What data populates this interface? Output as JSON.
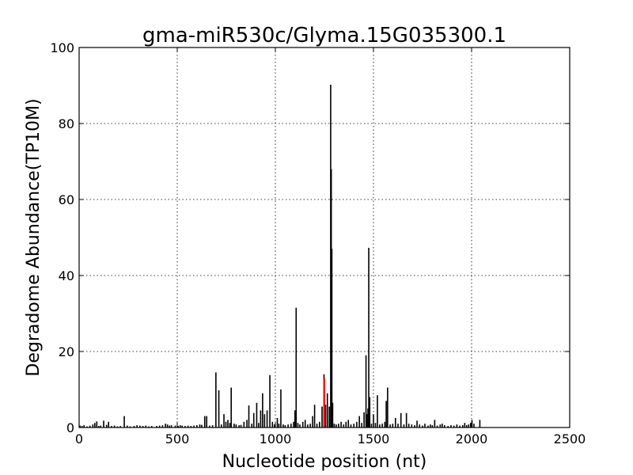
{
  "chart_data": {
    "type": "bar",
    "title": "gma-miR530c/Glyma.15G035300.1",
    "xlabel": "Nucleotide position (nt)",
    "ylabel": "Degradome Abundance(TP10M)",
    "xlim": [
      0,
      2500
    ],
    "ylim": [
      0,
      100
    ],
    "xticks": [
      "0",
      "500",
      "1000",
      "1500",
      "2000",
      "2500"
    ],
    "yticks": [
      "0",
      "20",
      "40",
      "60",
      "80",
      "100"
    ],
    "grid": true,
    "bar_color": "#000000",
    "highlight_color": "#ff0000",
    "series": [
      {
        "values": [
          [
            5,
            0.5
          ],
          [
            15,
            0.4
          ],
          [
            25,
            0.6
          ],
          [
            40,
            0.3
          ],
          [
            55,
            0.5
          ],
          [
            70,
            0.8
          ],
          [
            80,
            1.2
          ],
          [
            90,
            1.6
          ],
          [
            100,
            0.4
          ],
          [
            110,
            0.5
          ],
          [
            125,
            1.8
          ],
          [
            140,
            0.7
          ],
          [
            150,
            1.5
          ],
          [
            165,
            0.4
          ],
          [
            180,
            0.5
          ],
          [
            195,
            0.3
          ],
          [
            210,
            0.4
          ],
          [
            230,
            3.0
          ],
          [
            245,
            0.5
          ],
          [
            260,
            0.3
          ],
          [
            280,
            0.4
          ],
          [
            295,
            0.6
          ],
          [
            310,
            0.5
          ],
          [
            325,
            0.4
          ],
          [
            340,
            0.5
          ],
          [
            355,
            0.3
          ],
          [
            370,
            0.4
          ],
          [
            395,
            0.4
          ],
          [
            410,
            0.5
          ],
          [
            425,
            0.6
          ],
          [
            440,
            1.0
          ],
          [
            450,
            0.8
          ],
          [
            460,
            0.5
          ],
          [
            470,
            0.6
          ],
          [
            490,
            0.5
          ],
          [
            505,
            0.4
          ],
          [
            515,
            0.6
          ],
          [
            525,
            0.5
          ],
          [
            540,
            0.4
          ],
          [
            555,
            0.5
          ],
          [
            570,
            0.4
          ],
          [
            585,
            0.5
          ],
          [
            600,
            0.6
          ],
          [
            615,
            0.8
          ],
          [
            625,
            0.7
          ],
          [
            640,
            3.0
          ],
          [
            650,
            3.0
          ],
          [
            665,
            0.5
          ],
          [
            680,
            0.6
          ],
          [
            697,
            14.5
          ],
          [
            712,
            9.8
          ],
          [
            725,
            0.8
          ],
          [
            738,
            3.5
          ],
          [
            748,
            1.5
          ],
          [
            758,
            2.0
          ],
          [
            768,
            1.2
          ],
          [
            775,
            10.5
          ],
          [
            790,
            1.0
          ],
          [
            800,
            0.8
          ],
          [
            815,
            0.6
          ],
          [
            825,
            0.7
          ],
          [
            840,
            1.5
          ],
          [
            855,
            2.0
          ],
          [
            865,
            5.8
          ],
          [
            880,
            1.0
          ],
          [
            890,
            3.8
          ],
          [
            905,
            6.5
          ],
          [
            915,
            1.2
          ],
          [
            925,
            4.5
          ],
          [
            935,
            9.0
          ],
          [
            945,
            3.5
          ],
          [
            958,
            4.5
          ],
          [
            972,
            13.8
          ],
          [
            985,
            1.5
          ],
          [
            995,
            0.8
          ],
          [
            1010,
            2.5
          ],
          [
            1018,
            1.0
          ],
          [
            1028,
            10.0
          ],
          [
            1040,
            0.8
          ],
          [
            1050,
            0.6
          ],
          [
            1065,
            0.8
          ],
          [
            1080,
            1.0
          ],
          [
            1093,
            1.5
          ],
          [
            1100,
            4.5
          ],
          [
            1106,
            31.5
          ],
          [
            1115,
            1.2
          ],
          [
            1125,
            0.8
          ],
          [
            1140,
            1.5
          ],
          [
            1152,
            2.0
          ],
          [
            1165,
            0.8
          ],
          [
            1178,
            1.0
          ],
          [
            1190,
            3.0
          ],
          [
            1200,
            6.0
          ],
          [
            1212,
            1.0
          ],
          [
            1225,
            1.5
          ],
          [
            1238,
            5.5
          ],
          [
            1248,
            14.0
          ],
          [
            1256,
            6.0
          ],
          [
            1265,
            9.0
          ],
          [
            1275,
            5.5
          ],
          [
            1282,
            90.2
          ],
          [
            1285,
            68.0
          ],
          [
            1288,
            47.0
          ],
          [
            1292,
            6.5
          ],
          [
            1300,
            1.0
          ],
          [
            1310,
            0.8
          ],
          [
            1322,
            1.0
          ],
          [
            1335,
            1.5
          ],
          [
            1348,
            0.8
          ],
          [
            1360,
            1.5
          ],
          [
            1372,
            2.0
          ],
          [
            1385,
            0.8
          ],
          [
            1400,
            1.0
          ],
          [
            1415,
            1.5
          ],
          [
            1428,
            3.0
          ],
          [
            1440,
            1.2
          ],
          [
            1452,
            4.0
          ],
          [
            1462,
            19.0
          ],
          [
            1468,
            3.5
          ],
          [
            1472,
            5.0
          ],
          [
            1476,
            47.3
          ],
          [
            1481,
            8.0
          ],
          [
            1490,
            1.0
          ],
          [
            1500,
            3.5
          ],
          [
            1510,
            1.2
          ],
          [
            1520,
            8.5
          ],
          [
            1532,
            0.8
          ],
          [
            1545,
            1.0
          ],
          [
            1558,
            1.5
          ],
          [
            1565,
            7.0
          ],
          [
            1572,
            10.5
          ],
          [
            1585,
            0.8
          ],
          [
            1598,
            1.0
          ],
          [
            1612,
            2.5
          ],
          [
            1625,
            1.0
          ],
          [
            1640,
            3.8
          ],
          [
            1655,
            0.8
          ],
          [
            1668,
            3.8
          ],
          [
            1680,
            1.0
          ],
          [
            1695,
            0.8
          ],
          [
            1710,
            0.6
          ],
          [
            1722,
            1.8
          ],
          [
            1735,
            0.8
          ],
          [
            1750,
            0.5
          ],
          [
            1762,
            1.0
          ],
          [
            1778,
            0.5
          ],
          [
            1790,
            0.8
          ],
          [
            1800,
            0.6
          ],
          [
            1812,
            2.0
          ],
          [
            1825,
            0.5
          ],
          [
            1840,
            0.8
          ],
          [
            1850,
            1.0
          ],
          [
            1862,
            0.6
          ],
          [
            1880,
            0.4
          ],
          [
            1895,
            0.6
          ],
          [
            1910,
            0.5
          ],
          [
            1925,
            0.8
          ],
          [
            1940,
            0.5
          ],
          [
            1955,
            0.6
          ],
          [
            1965,
            1.2
          ],
          [
            1975,
            0.6
          ],
          [
            1985,
            0.8
          ],
          [
            1995,
            1.2
          ],
          [
            2002,
            2.0
          ],
          [
            2012,
            1.0
          ],
          [
            2042,
            2.0
          ]
        ]
      },
      {
        "highlight": true,
        "values": [
          [
            1249,
            13.0
          ]
        ]
      }
    ]
  }
}
